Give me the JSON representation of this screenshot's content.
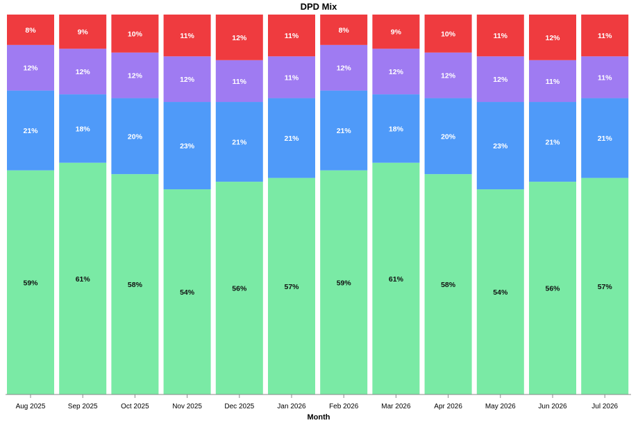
{
  "chart_data": {
    "type": "bar",
    "stacked": true,
    "normalized": true,
    "title": "DPD Mix",
    "xlabel": "Month",
    "ylabel": "",
    "ylim": [
      0,
      100
    ],
    "grid": false,
    "categories": [
      "Aug 2025",
      "Sep 2025",
      "Oct 2025",
      "Nov 2025",
      "Dec 2025",
      "Jan 2026",
      "Feb 2026",
      "Mar 2026",
      "Apr 2026",
      "May 2026",
      "Jun 2026",
      "Jul 2026"
    ],
    "series": [
      {
        "color": "#7aeaa5",
        "label_color": "#111111",
        "values": [
          59,
          61,
          58,
          54,
          56,
          57,
          59,
          61,
          58,
          54,
          56,
          57
        ]
      },
      {
        "color": "#4f9af9",
        "label_color": "#ffffff",
        "values": [
          21,
          18,
          20,
          23,
          21,
          21,
          21,
          18,
          20,
          23,
          21,
          21
        ]
      },
      {
        "color": "#9f7bf2",
        "label_color": "#ffffff",
        "values": [
          12,
          12,
          12,
          12,
          11,
          11,
          12,
          12,
          12,
          12,
          11,
          11
        ]
      },
      {
        "color": "#ef3b3f",
        "label_color": "#ffffff",
        "values": [
          8,
          9,
          10,
          11,
          12,
          11,
          8,
          9,
          10,
          11,
          12,
          11
        ]
      }
    ]
  }
}
